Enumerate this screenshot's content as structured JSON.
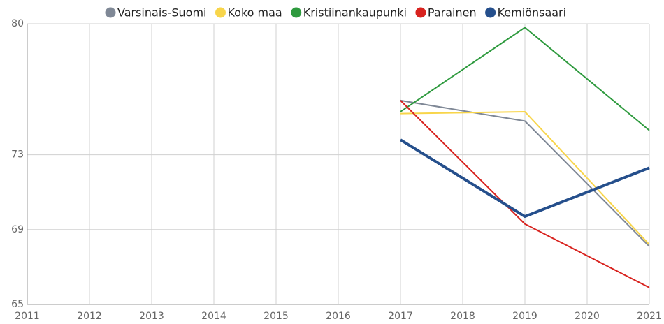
{
  "chart_data": {
    "type": "line",
    "x": [
      2017,
      2019,
      2021
    ],
    "xlim": [
      2011,
      2021
    ],
    "xticks": [
      2011,
      2012,
      2013,
      2014,
      2015,
      2016,
      2017,
      2018,
      2019,
      2020,
      2021
    ],
    "ylim": [
      65,
      80
    ],
    "yticks": [
      65,
      69,
      73,
      80
    ],
    "grid": true,
    "legend": "top",
    "series": [
      {
        "name": "Varsinais-Suomi",
        "color": "#7f8896",
        "line_width": 2,
        "values": [
          75.9,
          74.8,
          68.1
        ]
      },
      {
        "name": "Koko maa",
        "color": "#f8d54a",
        "line_width": 2,
        "values": [
          75.2,
          75.3,
          68.2
        ]
      },
      {
        "name": "Kristiinankaupunki",
        "color": "#2e9a3e",
        "line_width": 2,
        "values": [
          75.3,
          79.8,
          74.3
        ]
      },
      {
        "name": "Parainen",
        "color": "#d8231f",
        "line_width": 2,
        "values": [
          75.9,
          69.3,
          65.9
        ]
      },
      {
        "name": "Kemiönsaari",
        "color": "#254f8c",
        "line_width": 4,
        "values": [
          73.8,
          69.7,
          72.3
        ]
      }
    ]
  }
}
